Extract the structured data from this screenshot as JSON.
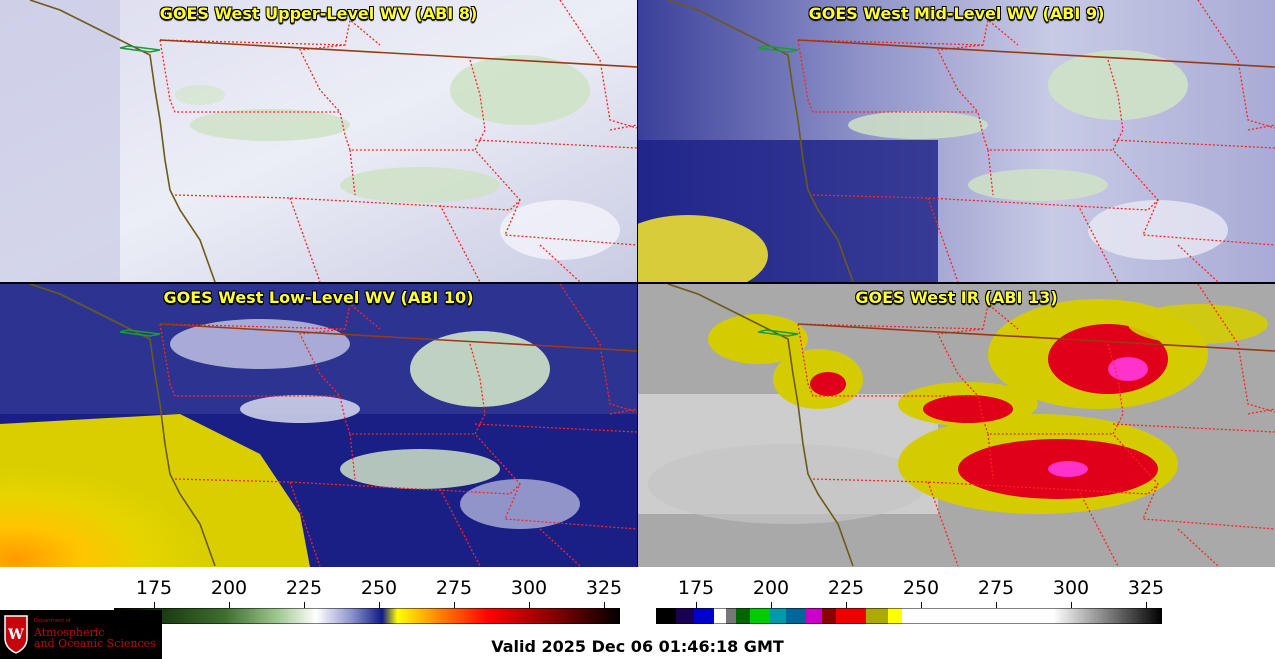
{
  "panels": [
    {
      "title": "GOES West Upper-Level WV (ABI 8)"
    },
    {
      "title": "GOES West Mid-Level WV (ABI 9)"
    },
    {
      "title": "GOES West Low-Level WV (ABI 10)"
    },
    {
      "title": "GOES West IR (ABI 13)"
    }
  ],
  "colorbars": {
    "wv": {
      "ticks": [
        "175",
        "200",
        "225",
        "250",
        "275",
        "300",
        "325"
      ],
      "colors": [
        "#000000",
        "#1b3d12",
        "#3f6e2f",
        "#9cc58c",
        "#ffffff",
        "#8c92cc",
        "#101a86",
        "#ffff00",
        "#ff7a00",
        "#ff0000",
        "#7a0000",
        "#000000"
      ]
    },
    "ir": {
      "ticks": [
        "175",
        "200",
        "225",
        "250",
        "275",
        "300",
        "325"
      ]
    }
  },
  "valid_time": "Valid 2025 Dec 06 01:46:18 GMT",
  "logo": {
    "line1": "Department of",
    "line2": "Atmospheric",
    "line3": "and Oceanic Sciences"
  },
  "colors": {
    "title": "#ffff33",
    "state_border": "#ff2222",
    "coast": "#6b5a1a",
    "intl_border": "#9a3a14",
    "logo_red": "#c5050c"
  }
}
